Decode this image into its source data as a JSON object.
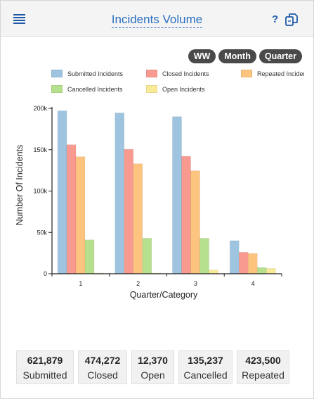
{
  "header": {
    "title": "Incidents Volume",
    "help_label": "?"
  },
  "view_buttons": [
    "WW",
    "Month",
    "Quarter"
  ],
  "chart_data": {
    "type": "bar",
    "title": "",
    "xlabel": "Quarter/Category",
    "ylabel": "Number Of Incidents",
    "categories": [
      "1",
      "2",
      "3",
      "4"
    ],
    "ylim": [
      0,
      200000
    ],
    "yticks": [
      0,
      50000,
      100000,
      150000,
      200000
    ],
    "ytick_labels": [
      "0",
      "50k",
      "100k",
      "150k",
      "200k"
    ],
    "legend_position": "top",
    "grid": false,
    "series": [
      {
        "name": "Submitted Incidents",
        "color": "#9fc4e0",
        "values": [
          197000,
          194500,
          190000,
          40000
        ]
      },
      {
        "name": "Closed Incidents",
        "color": "#f99a90",
        "values": [
          156000,
          150500,
          142000,
          26000
        ]
      },
      {
        "name": "Repeated Incidents",
        "color": "#fcc47e",
        "values": [
          141500,
          133000,
          124500,
          24500
        ]
      },
      {
        "name": "Cancelled Incidents",
        "color": "#b7e08e",
        "values": [
          41000,
          43000,
          43000,
          7500
        ]
      },
      {
        "name": "Open Incidents",
        "color": "#f9ea97",
        "values": [
          500,
          500,
          4500,
          6500
        ]
      }
    ]
  },
  "stats": [
    {
      "value": "621,879",
      "label": "Submitted"
    },
    {
      "value": "474,272",
      "label": "Closed"
    },
    {
      "value": "12,370",
      "label": "Open"
    },
    {
      "value": "135,237",
      "label": "Cancelled"
    },
    {
      "value": "423,500",
      "label": "Repeated"
    }
  ]
}
